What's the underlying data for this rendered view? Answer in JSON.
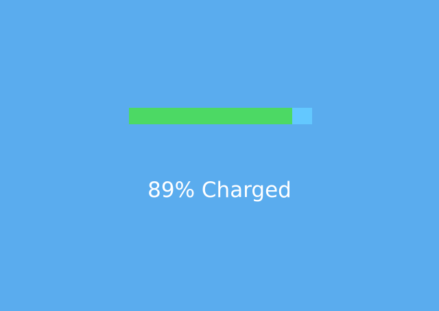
{
  "battery": {
    "level_percent": 89,
    "fill_color": "#4cd964",
    "track_color": "#63c8ff"
  },
  "status": {
    "text": "89% Charged"
  },
  "background_color": "#5aacee"
}
